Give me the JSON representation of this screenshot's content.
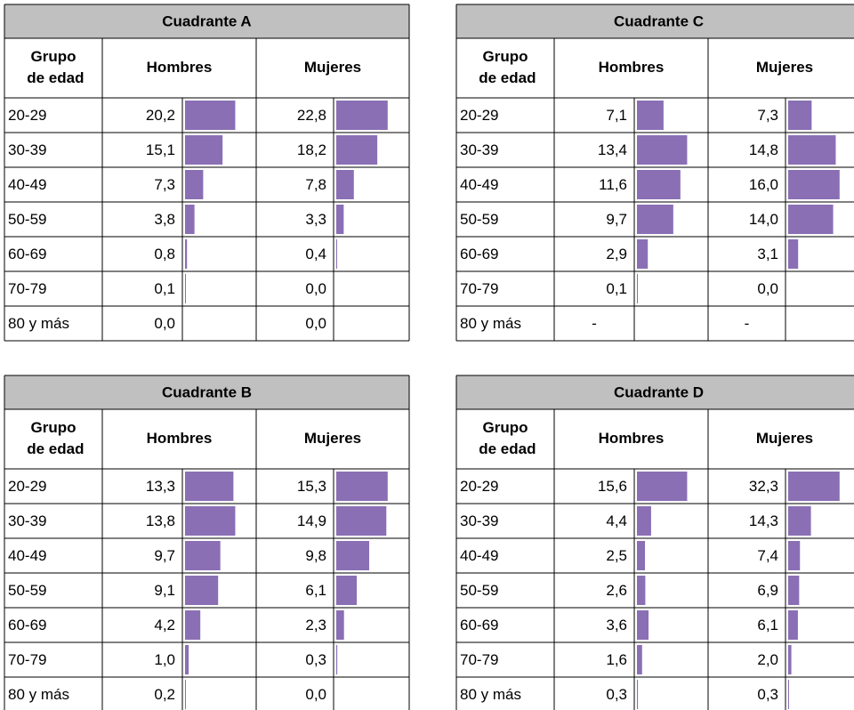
{
  "tables": [
    {
      "title": "Cuadrante A",
      "headers": [
        "Grupo de edad",
        "Hombres",
        "Mujeres"
      ],
      "rows": [
        "20-29",
        "30-39",
        "40-49",
        "50-59",
        "60-69",
        "70-79",
        "80 y más"
      ],
      "hombres": {
        "values": [
          20.2,
          15.1,
          7.3,
          3.8,
          0.8,
          0.1,
          0.0
        ],
        "value_labels": [
          "20,2",
          "15,1",
          "7,3",
          "3,8",
          "0,8",
          "0,1",
          "0,0"
        ]
      },
      "mujeres": {
        "values": [
          22.8,
          18.2,
          7.8,
          3.3,
          0.4,
          0.0,
          0.0
        ],
        "value_labels": [
          "22,8",
          "18,2",
          "7,8",
          "3,3",
          "0,4",
          "0,0",
          "0,0"
        ]
      }
    },
    {
      "title": "Cuadrante C",
      "headers": [
        "Grupo de edad",
        "Hombres",
        "Mujeres"
      ],
      "rows": [
        "20-29",
        "30-39",
        "40-49",
        "50-59",
        "60-69",
        "70-79",
        "80 y más"
      ],
      "hombres": {
        "values": [
          7.1,
          13.4,
          11.6,
          9.7,
          2.9,
          0.1,
          null
        ],
        "value_labels": [
          "7,1",
          "13,4",
          "11,6",
          "9,7",
          "2,9",
          "0,1",
          "-"
        ]
      },
      "mujeres": {
        "values": [
          7.3,
          14.8,
          16.0,
          14.0,
          3.1,
          0.0,
          null
        ],
        "value_labels": [
          "7,3",
          "14,8",
          "16,0",
          "14,0",
          "3,1",
          "0,0",
          "-"
        ]
      }
    },
    {
      "title": "Cuadrante B",
      "headers": [
        "Grupo de edad",
        "Hombres",
        "Mujeres"
      ],
      "rows": [
        "20-29",
        "30-39",
        "40-49",
        "50-59",
        "60-69",
        "70-79",
        "80 y más"
      ],
      "hombres": {
        "values": [
          13.3,
          13.8,
          9.7,
          9.1,
          4.2,
          1.0,
          0.2
        ],
        "value_labels": [
          "13,3",
          "13,8",
          "9,7",
          "9,1",
          "4,2",
          "1,0",
          "0,2"
        ]
      },
      "mujeres": {
        "values": [
          15.3,
          14.9,
          9.8,
          6.1,
          2.3,
          0.3,
          0.0
        ],
        "value_labels": [
          "15,3",
          "14,9",
          "9,8",
          "6,1",
          "2,3",
          "0,3",
          "0,0"
        ]
      }
    },
    {
      "title": "Cuadrante D",
      "headers": [
        "Grupo de edad",
        "Hombres",
        "Mujeres"
      ],
      "rows": [
        "20-29",
        "30-39",
        "40-49",
        "50-59",
        "60-69",
        "70-79",
        "80 y más"
      ],
      "hombres": {
        "values": [
          15.6,
          4.4,
          2.5,
          2.6,
          3.6,
          1.6,
          0.3
        ],
        "value_labels": [
          "15,6",
          "4,4",
          "2,5",
          "2,6",
          "3,6",
          "1,6",
          "0,3"
        ]
      },
      "mujeres": {
        "values": [
          32.3,
          14.3,
          7.4,
          6.9,
          6.1,
          2.0,
          0.3
        ],
        "value_labels": [
          "32,3",
          "14,3",
          "7,4",
          "6,9",
          "6,1",
          "2,0",
          "0,3"
        ]
      }
    }
  ]
}
